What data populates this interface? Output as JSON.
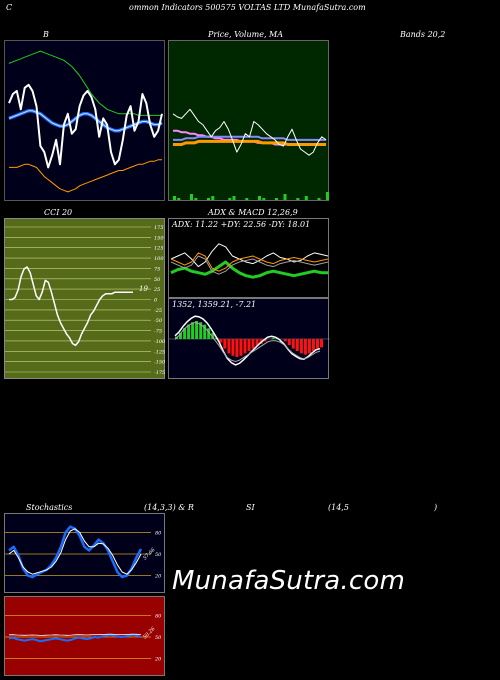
{
  "header": {
    "c": "C",
    "title": "ommon  Indicators 500575 VOLTAS LTD MunafaSutra.com"
  },
  "watermark": "MunafaSutra.com",
  "panels": {
    "bb": {
      "label": "B",
      "bands_label": "Bands 20,2"
    },
    "price": {
      "label": "Price,  Volume,  MA"
    },
    "cci": {
      "label": "CCI 20",
      "value": "19",
      "ticks": [
        "175",
        "150",
        "125",
        "100",
        "75",
        "50",
        "25",
        "0",
        "-25",
        "-50",
        "-75",
        "-100",
        "-125",
        "-150",
        "-175"
      ]
    },
    "adx": {
      "label": "ADX  & MACD 12,26,9",
      "readout": "ADX: 11.22  +DY: 22.56  -DY: 18.01"
    },
    "macd": {
      "readout": "1352,  1359.21,  -7.21"
    },
    "stoch": {
      "label_left": "Stochastics",
      "label_mid": "(14,3,3) & R",
      "label_si": "SI",
      "label_rsi": "(14,5",
      "label_close": ")",
      "ticks": [
        "80",
        "50",
        "20"
      ],
      "value": "57.66"
    },
    "rsi": {
      "ticks": [
        "80",
        "50",
        "20"
      ],
      "value": "50.26"
    }
  },
  "colors": {
    "navy": "#00001a",
    "darkgreen": "#002800",
    "olive": "#556b1a",
    "darkred": "#990000",
    "blue": "#1a6cff",
    "green": "#22cc22",
    "orange": "#ff9900",
    "red": "#ff1111"
  },
  "chart_data": [
    {
      "type": "line",
      "name": "bollinger",
      "x": [
        0,
        1,
        2,
        3,
        4,
        5,
        6,
        7,
        8,
        9,
        10,
        11,
        12,
        13,
        14,
        15,
        16,
        17,
        18,
        19,
        20,
        21,
        22,
        23,
        24,
        25,
        26,
        27,
        28,
        29,
        30,
        31,
        32,
        33,
        34,
        35,
        36,
        37,
        38,
        39
      ],
      "series": [
        {
          "values": [
            62,
            68,
            70,
            58,
            72,
            74,
            70,
            60,
            34,
            30,
            20,
            28,
            38,
            22,
            48,
            55,
            42,
            45,
            60,
            67,
            70,
            66,
            58,
            40,
            52,
            48,
            30,
            22,
            25,
            38,
            54,
            60,
            44,
            50,
            68,
            62,
            48,
            40,
            44,
            55
          ]
        },
        {
          "values": [
            52,
            53,
            54,
            55,
            56,
            57,
            57,
            56,
            55,
            53,
            51,
            49,
            48,
            47,
            47,
            48,
            50,
            52,
            54,
            55,
            55,
            54,
            52,
            50,
            48,
            46,
            45,
            44,
            44,
            45,
            46,
            47,
            48,
            49,
            50,
            50,
            49,
            48,
            48,
            49
          ]
        },
        {
          "values": [
            88,
            89,
            90,
            91,
            92,
            93,
            94,
            95,
            96,
            95,
            94,
            93,
            92,
            91,
            90,
            88,
            86,
            83,
            80,
            76,
            72,
            68,
            65,
            62,
            60,
            58,
            57,
            56,
            55,
            55,
            55,
            55,
            55,
            54,
            54,
            54,
            54,
            54,
            54,
            54
          ]
        },
        {
          "values": [
            20,
            20,
            20,
            21,
            22,
            22,
            21,
            20,
            17,
            14,
            12,
            10,
            8,
            6,
            5,
            4,
            5,
            6,
            8,
            9,
            10,
            11,
            12,
            13,
            14,
            15,
            16,
            17,
            18,
            18,
            19,
            20,
            21,
            22,
            22,
            23,
            24,
            24,
            25,
            25
          ]
        }
      ]
    },
    {
      "type": "line",
      "name": "price",
      "series": [
        {
          "values": [
            55,
            53,
            52,
            55,
            58,
            54,
            50,
            48,
            44,
            40,
            44,
            46,
            50,
            45,
            38,
            30,
            35,
            42,
            40,
            50,
            48,
            45,
            42,
            40,
            38,
            35,
            34,
            40,
            45,
            38,
            32,
            30,
            28,
            30,
            36,
            40,
            38
          ]
        },
        {
          "values": [
            44,
            44,
            43,
            43,
            42,
            42,
            41,
            41,
            40,
            40,
            39,
            39,
            38,
            38,
            38,
            38,
            37,
            37,
            37,
            37,
            36,
            36,
            36,
            36,
            35,
            35,
            35,
            35,
            35,
            35,
            35,
            35,
            35,
            35,
            35,
            35,
            35
          ]
        },
        {
          "values": [
            38,
            38,
            38,
            39,
            39,
            39,
            40,
            40,
            40,
            40,
            40,
            40,
            40,
            40,
            40,
            40,
            40,
            40,
            40,
            40,
            40,
            39,
            39,
            39,
            39,
            39,
            39,
            38,
            38,
            38,
            38,
            38,
            38,
            38,
            38,
            38,
            38
          ]
        }
      ],
      "volume": [
        2,
        1,
        0,
        0,
        3,
        1,
        0,
        0,
        1,
        2,
        0,
        0,
        0,
        1,
        2,
        0,
        0,
        1,
        0,
        0,
        2,
        1,
        0,
        0,
        1,
        0,
        3,
        0,
        0,
        1,
        0,
        2,
        0,
        0,
        1,
        0,
        4
      ]
    },
    {
      "type": "line",
      "name": "cci",
      "ylim": [
        -175,
        175
      ],
      "x": [
        0,
        1,
        2,
        3,
        4,
        5,
        6,
        7,
        8,
        9,
        10,
        11,
        12,
        13,
        14,
        15,
        16,
        17,
        18,
        19,
        20,
        21,
        22,
        23,
        24,
        25,
        26,
        27,
        28,
        29,
        30,
        31,
        32,
        33,
        34,
        35,
        36,
        37,
        38,
        39,
        40,
        41
      ],
      "values": [
        0,
        0,
        5,
        25,
        60,
        80,
        85,
        70,
        40,
        10,
        0,
        20,
        50,
        45,
        20,
        -10,
        -40,
        -60,
        -75,
        -90,
        -100,
        -115,
        -120,
        -110,
        -90,
        -75,
        -60,
        -40,
        -30,
        -15,
        0,
        10,
        15,
        15,
        15,
        19,
        19,
        19,
        19,
        19,
        19,
        19
      ]
    },
    {
      "type": "line",
      "name": "adx",
      "series": [
        {
          "values": [
            11,
            13,
            14,
            12,
            11,
            10,
            12,
            15,
            18,
            14,
            11,
            9,
            8,
            9,
            11,
            12,
            11,
            10,
            9,
            10,
            11,
            12,
            11,
            11
          ]
        },
        {
          "values": [
            20,
            22,
            24,
            20,
            15,
            18,
            25,
            30,
            28,
            22,
            20,
            18,
            17,
            19,
            22,
            24,
            21,
            20,
            18,
            19,
            22,
            24,
            23,
            22
          ]
        },
        {
          "values": [
            18,
            16,
            14,
            16,
            22,
            20,
            12,
            10,
            12,
            16,
            18,
            19,
            20,
            18,
            16,
            15,
            17,
            18,
            19,
            18,
            17,
            16,
            17,
            18
          ]
        }
      ]
    },
    {
      "type": "bar",
      "name": "macd_histogram",
      "values": [
        2,
        5,
        9,
        12,
        14,
        15,
        14,
        12,
        9,
        5,
        1,
        -3,
        -8,
        -12,
        -14,
        -15,
        -14,
        -12,
        -10,
        -8,
        -6,
        -4,
        -2,
        0,
        1,
        1,
        0,
        -2,
        -5,
        -8,
        -10,
        -12,
        -13,
        -12,
        -10,
        -8,
        -7
      ]
    },
    {
      "type": "line",
      "name": "stochastics",
      "ylim": [
        0,
        100
      ],
      "series": [
        {
          "values": [
            55,
            60,
            48,
            30,
            20,
            18,
            22,
            25,
            28,
            35,
            45,
            60,
            80,
            88,
            85,
            75,
            60,
            55,
            62,
            70,
            65,
            55,
            40,
            25,
            18,
            20,
            30,
            45,
            57
          ]
        },
        {
          "values": [
            50,
            55,
            45,
            32,
            25,
            22,
            24,
            26,
            28,
            32,
            40,
            52,
            70,
            82,
            85,
            80,
            68,
            60,
            60,
            65,
            64,
            58,
            48,
            35,
            25,
            22,
            28,
            38,
            50
          ]
        }
      ]
    },
    {
      "type": "line",
      "name": "rsi",
      "ylim": [
        0,
        100
      ],
      "values": [
        48,
        49,
        47,
        46,
        45,
        46,
        47,
        46,
        44,
        45,
        46,
        47,
        48,
        47,
        46,
        45,
        46,
        48,
        49,
        48,
        47,
        48,
        50,
        49,
        51,
        52,
        53,
        52,
        51,
        50,
        51,
        52,
        53,
        52,
        50
      ]
    }
  ]
}
